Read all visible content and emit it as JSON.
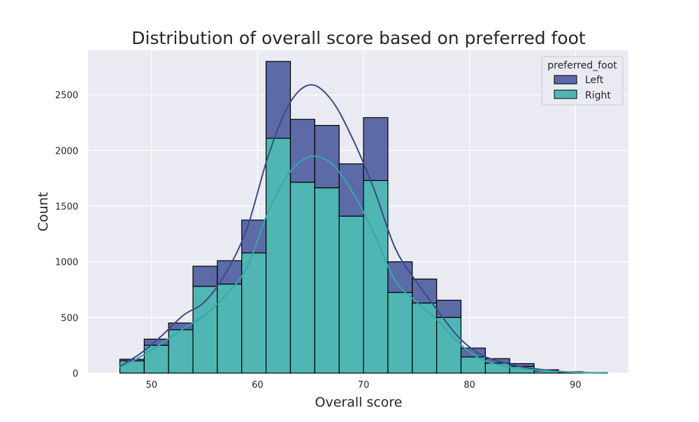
{
  "chart_data": {
    "type": "bar",
    "title": "Distribution of overall score based on preferred foot",
    "xlabel": "Overall score",
    "ylabel": "Count",
    "xlim": [
      44,
      95
    ],
    "ylim": [
      0,
      2900
    ],
    "x_ticks": [
      50,
      60,
      70,
      80,
      90
    ],
    "y_ticks": [
      0,
      500,
      1000,
      1500,
      2000,
      2500
    ],
    "grid": true,
    "stacked": true,
    "bin_edges": [
      47.0,
      49.3,
      51.6,
      53.9,
      56.2,
      58.5,
      60.8,
      63.1,
      65.4,
      67.7,
      70.0,
      72.3,
      74.6,
      76.9,
      79.2,
      81.5,
      83.8,
      86.1,
      88.4,
      90.7,
      93.0
    ],
    "series": [
      {
        "name": "Right",
        "color": "#4fb6b3",
        "kde_color": "#36a8a6",
        "values": [
          110,
          250,
          390,
          780,
          800,
          1080,
          2110,
          1715,
          1665,
          1410,
          1730,
          725,
          630,
          500,
          145,
          90,
          60,
          20,
          8,
          3
        ]
      },
      {
        "name": "Left",
        "color": "#5c6aa8",
        "kde_color": "#3a4a8a",
        "values": [
          15,
          55,
          60,
          180,
          210,
          295,
          690,
          565,
          560,
          470,
          565,
          275,
          215,
          155,
          80,
          40,
          25,
          10,
          4,
          1
        ]
      }
    ],
    "kde": {
      "x": [
        47,
        49,
        51,
        53,
        55,
        57,
        59,
        61,
        63,
        65,
        67,
        69,
        71,
        73,
        75,
        77,
        79,
        81,
        83,
        85,
        87,
        89,
        91,
        93
      ],
      "right": [
        50,
        150,
        270,
        400,
        520,
        700,
        950,
        1450,
        1800,
        1945,
        1880,
        1620,
        1250,
        830,
        640,
        470,
        270,
        130,
        70,
        40,
        22,
        10,
        4,
        1
      ],
      "total": [
        60,
        180,
        340,
        520,
        640,
        900,
        1300,
        1950,
        2420,
        2590,
        2450,
        2100,
        1650,
        1120,
        820,
        560,
        320,
        170,
        100,
        55,
        30,
        12,
        5,
        1
      ]
    },
    "legend": {
      "title": "preferred_foot",
      "position": "top-right",
      "entries": [
        "Left",
        "Right"
      ]
    }
  }
}
